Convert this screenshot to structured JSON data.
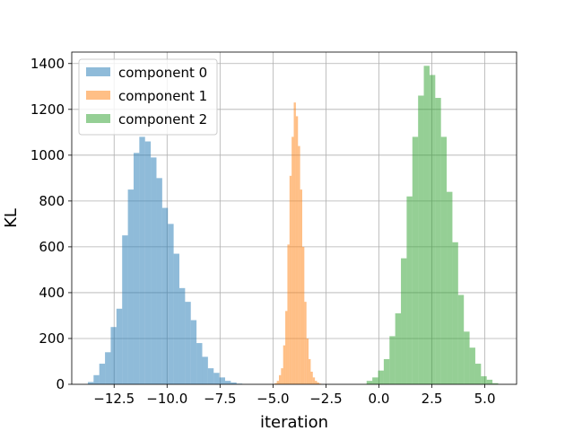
{
  "chart_data": {
    "type": "histogram",
    "title": "",
    "xlabel": "iteration",
    "ylabel": "KL",
    "xlim": [
      -14.5,
      6.5
    ],
    "ylim": [
      0,
      1450
    ],
    "xticks": [
      -12.5,
      -10.0,
      -7.5,
      -5.0,
      -2.5,
      0.0,
      2.5,
      5.0
    ],
    "xtick_labels": [
      "−12.5",
      "−10.0",
      "−7.5",
      "−5.0",
      "−2.5",
      "0.0",
      "2.5",
      "5.0"
    ],
    "yticks": [
      0,
      200,
      400,
      600,
      800,
      1000,
      1200,
      1400
    ],
    "ytick_labels": [
      "0",
      "200",
      "400",
      "600",
      "800",
      "1000",
      "1200",
      "1400"
    ],
    "grid": true,
    "legend_position": "top-left",
    "series": [
      {
        "name": "component 0",
        "color": "#1f77b4",
        "alpha": 0.5,
        "bin_edges": [
          -13.74,
          -13.47,
          -13.2,
          -12.93,
          -12.66,
          -12.39,
          -12.12,
          -11.85,
          -11.58,
          -11.31,
          -11.04,
          -10.77,
          -10.5,
          -10.23,
          -9.96,
          -9.69,
          -9.42,
          -9.15,
          -8.88,
          -8.61,
          -8.34,
          -8.07,
          -7.8,
          -7.53,
          -7.26,
          -6.99,
          -6.72,
          -6.45
        ],
        "counts": [
          10,
          40,
          90,
          140,
          250,
          330,
          650,
          850,
          1010,
          1080,
          1060,
          990,
          900,
          770,
          700,
          570,
          420,
          360,
          280,
          180,
          120,
          70,
          50,
          30,
          15,
          8,
          3
        ]
      },
      {
        "name": "component 1",
        "color": "#ff7f0e",
        "alpha": 0.5,
        "bin_edges": [
          -4.92,
          -4.82,
          -4.72,
          -4.62,
          -4.52,
          -4.42,
          -4.32,
          -4.22,
          -4.12,
          -4.02,
          -3.92,
          -3.82,
          -3.72,
          -3.62,
          -3.52,
          -3.42,
          -3.32,
          -3.22,
          -3.12,
          -3.02,
          -2.92,
          -2.82,
          -2.72
        ],
        "counts": [
          5,
          15,
          40,
          70,
          170,
          320,
          610,
          910,
          1080,
          1230,
          1170,
          1040,
          850,
          600,
          360,
          200,
          110,
          55,
          30,
          15,
          8,
          3
        ]
      },
      {
        "name": "component 2",
        "color": "#2ca02c",
        "alpha": 0.5,
        "bin_edges": [
          -0.58,
          -0.31,
          -0.04,
          0.23,
          0.5,
          0.77,
          1.04,
          1.31,
          1.58,
          1.85,
          2.12,
          2.39,
          2.66,
          2.93,
          3.2,
          3.47,
          3.74,
          4.01,
          4.28,
          4.55,
          4.82,
          5.09,
          5.36,
          5.63
        ],
        "counts": [
          15,
          30,
          60,
          110,
          210,
          310,
          550,
          820,
          1080,
          1260,
          1390,
          1350,
          1250,
          1080,
          840,
          620,
          390,
          230,
          160,
          90,
          35,
          20,
          5
        ]
      }
    ]
  }
}
